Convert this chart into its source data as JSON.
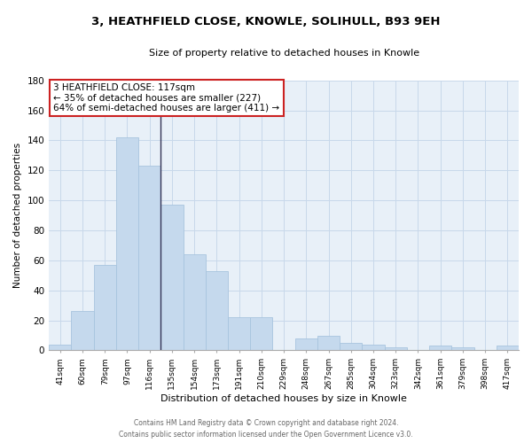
{
  "title": "3, HEATHFIELD CLOSE, KNOWLE, SOLIHULL, B93 9EH",
  "subtitle": "Size of property relative to detached houses in Knowle",
  "xlabel": "Distribution of detached houses by size in Knowle",
  "ylabel": "Number of detached properties",
  "bar_color": "#c5d9ed",
  "bar_edge_color": "#a8c4de",
  "grid_color": "#c8d8ea",
  "categories": [
    "41sqm",
    "60sqm",
    "79sqm",
    "97sqm",
    "116sqm",
    "135sqm",
    "154sqm",
    "173sqm",
    "191sqm",
    "210sqm",
    "229sqm",
    "248sqm",
    "267sqm",
    "285sqm",
    "304sqm",
    "323sqm",
    "342sqm",
    "361sqm",
    "379sqm",
    "398sqm",
    "417sqm"
  ],
  "values": [
    4,
    26,
    57,
    142,
    123,
    97,
    64,
    53,
    22,
    22,
    0,
    8,
    10,
    5,
    4,
    2,
    0,
    3,
    2,
    0,
    3
  ],
  "ylim": [
    0,
    180
  ],
  "yticks": [
    0,
    20,
    40,
    60,
    80,
    100,
    120,
    140,
    160,
    180
  ],
  "annotation_title": "3 HEATHFIELD CLOSE: 117sqm",
  "annotation_line1": "← 35% of detached houses are smaller (227)",
  "annotation_line2": "64% of semi-detached houses are larger (411) →",
  "vline_x_index": 3,
  "vline_color": "#333355",
  "footer_line1": "Contains HM Land Registry data © Crown copyright and database right 2024.",
  "footer_line2": "Contains public sector information licensed under the Open Government Licence v3.0.",
  "background_color": "#e8f0f8"
}
